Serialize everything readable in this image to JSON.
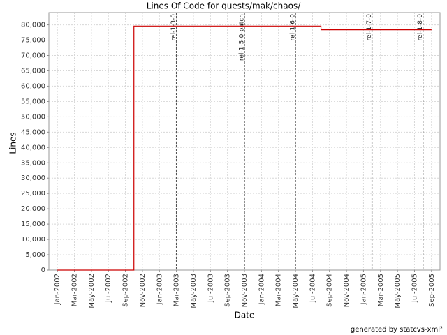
{
  "chart_data": {
    "type": "step",
    "title": "Lines Of Code for quests/mak/chaos/",
    "x_label": "Date",
    "y_label": "Lines",
    "credit": "generated by statcvs-xml²",
    "x": [
      "2002-01",
      "2002-10",
      "2004-08",
      "2005-09"
    ],
    "values": [
      0,
      79600,
      78400,
      78400
    ],
    "color": "#cc0000",
    "xlim": [
      "2001-12",
      "2005-10"
    ],
    "ylim": [
      0,
      84000
    ],
    "grid": true,
    "xticks": [
      {
        "value": "2002-01",
        "label": "Jan-2002"
      },
      {
        "value": "2002-03",
        "label": "Mar-2002"
      },
      {
        "value": "2002-05",
        "label": "May-2002"
      },
      {
        "value": "2002-07",
        "label": "Jul-2002"
      },
      {
        "value": "2002-09",
        "label": "Sep-2002"
      },
      {
        "value": "2002-11",
        "label": "Nov-2002"
      },
      {
        "value": "2003-01",
        "label": "Jan-2003"
      },
      {
        "value": "2003-03",
        "label": "Mar-2003"
      },
      {
        "value": "2003-05",
        "label": "May-2003"
      },
      {
        "value": "2003-07",
        "label": "Jul-2003"
      },
      {
        "value": "2003-09",
        "label": "Sep-2003"
      },
      {
        "value": "2003-11",
        "label": "Nov-2003"
      },
      {
        "value": "2004-01",
        "label": "Jan-2004"
      },
      {
        "value": "2004-03",
        "label": "Mar-2004"
      },
      {
        "value": "2004-05",
        "label": "May-2004"
      },
      {
        "value": "2004-07",
        "label": "Jul-2004"
      },
      {
        "value": "2004-09",
        "label": "Sep-2004"
      },
      {
        "value": "2004-11",
        "label": "Nov-2004"
      },
      {
        "value": "2005-01",
        "label": "Jan-2005"
      },
      {
        "value": "2005-03",
        "label": "Mar-2005"
      },
      {
        "value": "2005-05",
        "label": "May-2005"
      },
      {
        "value": "2005-07",
        "label": "Jul-2005"
      },
      {
        "value": "2005-09",
        "label": "Sep-2005"
      }
    ],
    "yticks": [
      0,
      {
        "value": 5000,
        "label": "5,000"
      },
      {
        "value": 10000,
        "label": "10,000"
      },
      {
        "value": 15000,
        "label": "15,000"
      },
      {
        "value": 20000,
        "label": "20,000"
      },
      {
        "value": 25000,
        "label": "25,000"
      },
      {
        "value": 30000,
        "label": "30,000"
      },
      {
        "value": 35000,
        "label": "35,000"
      },
      {
        "value": 40000,
        "label": "40,000"
      },
      {
        "value": 45000,
        "label": "45,000"
      },
      {
        "value": 50000,
        "label": "50,000"
      },
      {
        "value": 55000,
        "label": "55,000"
      },
      {
        "value": 60000,
        "label": "60,000"
      },
      {
        "value": 65000,
        "label": "65,000"
      },
      {
        "value": 70000,
        "label": "70,000"
      },
      {
        "value": 75000,
        "label": "75,000"
      },
      {
        "value": 80000,
        "label": "80,000"
      }
    ],
    "annotations": [
      {
        "x": "2003-03",
        "label": "rel-1-3-0"
      },
      {
        "x": "2003-11",
        "label": "rel-1-5-0-patch"
      },
      {
        "x": "2004-05",
        "label": "rel-1-6-0"
      },
      {
        "x": "2005-02",
        "label": "rel-1-7-0"
      },
      {
        "x": "2005-08",
        "label": "rel-1-8-0"
      }
    ]
  }
}
